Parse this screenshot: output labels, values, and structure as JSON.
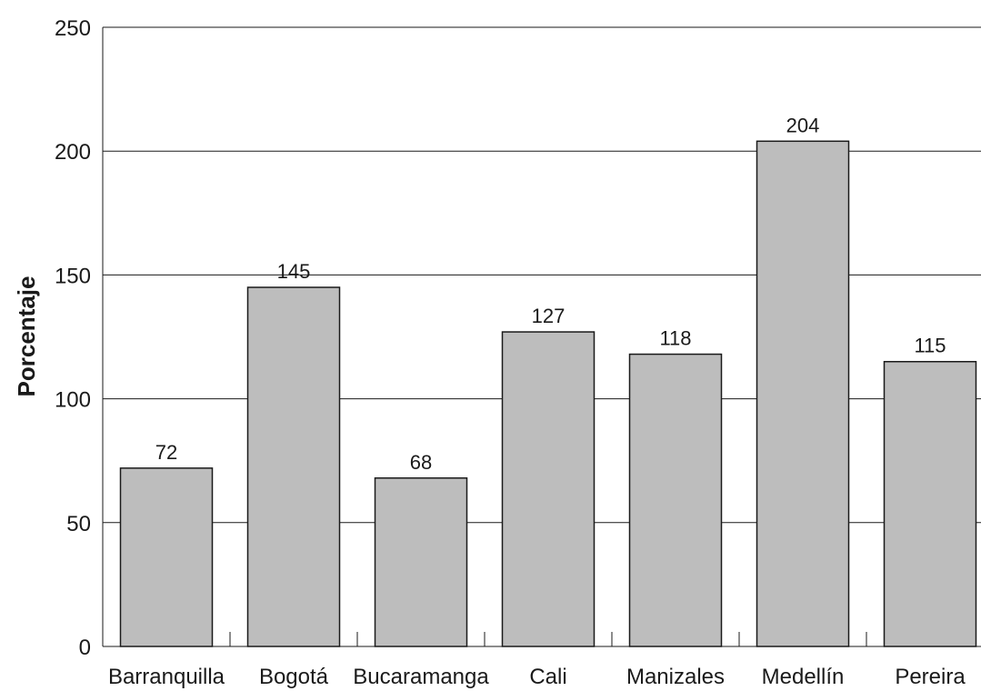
{
  "chart_data": {
    "type": "bar",
    "categories": [
      "Barranquilla",
      "Bogotá",
      "Bucaramanga",
      "Cali",
      "Manizales",
      "Medellín",
      "Pereira"
    ],
    "values": [
      72,
      145,
      68,
      127,
      118,
      204,
      115
    ],
    "data_labels": [
      "72",
      "145",
      "68",
      "127",
      "118",
      "204",
      "115"
    ],
    "title": "",
    "xlabel": "",
    "ylabel": "Porcentaje",
    "ylim": [
      0,
      250
    ],
    "yticks": [
      0,
      50,
      100,
      150,
      200,
      250
    ],
    "grid": true,
    "legend": "none",
    "colors": {
      "bar_fill": "#bdbdbd",
      "bar_stroke": "#1a1a1a",
      "grid": "#1a1a1a",
      "text": "#1a1a1a"
    }
  }
}
